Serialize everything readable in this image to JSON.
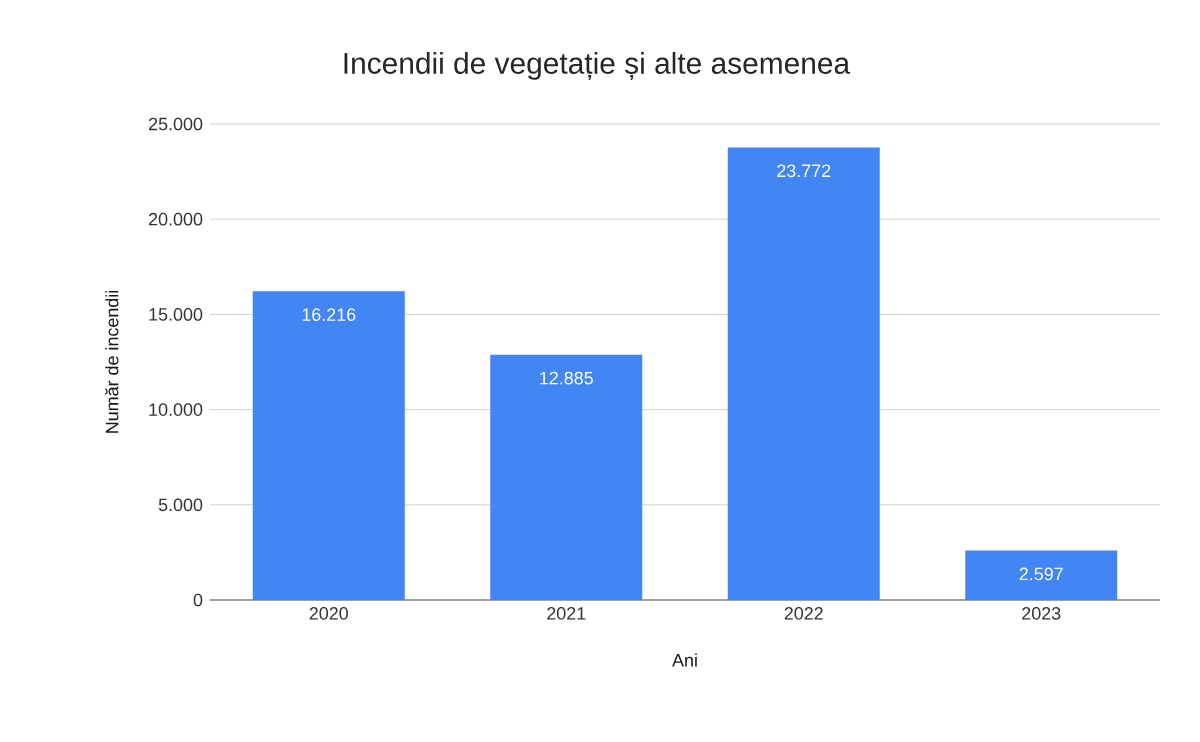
{
  "chart_data": {
    "type": "bar",
    "title": "Incendii de vegetație și alte asemenea",
    "xlabel": "Ani",
    "ylabel": "Număr de incendii",
    "categories": [
      "2020",
      "2021",
      "2022",
      "2023"
    ],
    "values": [
      16216,
      12885,
      23772,
      2597
    ],
    "value_labels": [
      "16.216",
      "12.885",
      "23.772",
      "2.597"
    ],
    "color": "#4285f4",
    "ylim": [
      0,
      25000
    ],
    "yticks": [
      {
        "value": 0,
        "label": "0"
      },
      {
        "value": 5000,
        "label": "5.000"
      },
      {
        "value": 10000,
        "label": "10.000"
      },
      {
        "value": 15000,
        "label": "15.000"
      },
      {
        "value": 20000,
        "label": "20.000"
      },
      {
        "value": 25000,
        "label": "25.000"
      }
    ],
    "grid": "y"
  }
}
